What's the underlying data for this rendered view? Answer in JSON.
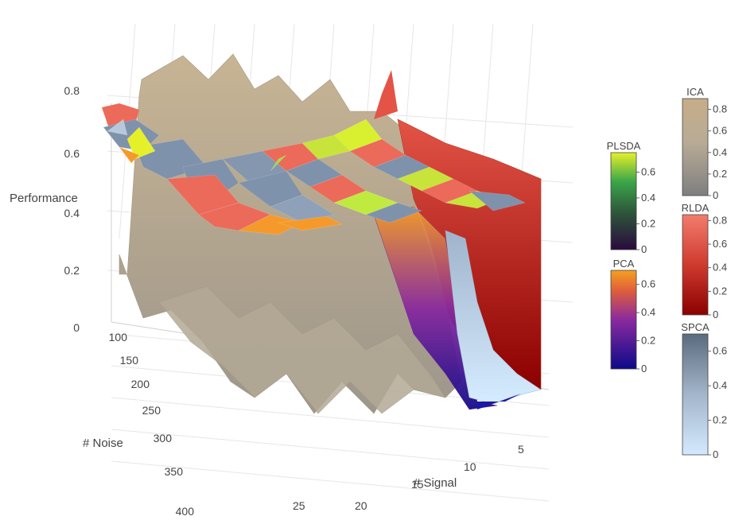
{
  "chart_data": {
    "type": "surface3d",
    "zaxis": {
      "title": "Performance",
      "ticks": [
        "0",
        "0.2",
        "0.4",
        "0.6",
        "0.8"
      ],
      "range": [
        0,
        0.9
      ]
    },
    "noise_axis": {
      "title": "# Noise",
      "ticks": [
        "100",
        "150",
        "200",
        "250",
        "300",
        "350",
        "400"
      ],
      "range": [
        100,
        400
      ]
    },
    "signal_axis": {
      "title": "# Signal",
      "ticks": [
        "5",
        "10",
        "15",
        "20",
        "25"
      ],
      "range": [
        3,
        28
      ]
    },
    "grid": true,
    "series": [
      {
        "name": "ICA",
        "colorscale": [
          "#7f7f7f",
          "#bfb29a",
          "#c9b08d"
        ],
        "colorbar": {
          "ticks": [
            "0",
            "0.2",
            "0.4",
            "0.6",
            "0.8"
          ],
          "max": 0.9
        },
        "approx_level": 0.55
      },
      {
        "name": "RLDA",
        "colorscale": [
          "#8b0000",
          "#e8534a",
          "#f27d6e"
        ],
        "colorbar": {
          "ticks": [
            "0",
            "0.2",
            "0.4",
            "0.6",
            "0.8"
          ],
          "max": 0.85
        },
        "approx_level": 0.68
      },
      {
        "name": "PLSDA",
        "colorscale": [
          "#2a0a3d",
          "#3aa64a",
          "#e6f02a"
        ],
        "colorbar": {
          "ticks": [
            "0",
            "0.2",
            "0.4",
            "0.6"
          ],
          "max": 0.75
        },
        "approx_level": 0.6
      },
      {
        "name": "PCA",
        "colorscale": [
          "#0d0a8a",
          "#8a2a9e",
          "#f5a020"
        ],
        "colorbar": {
          "ticks": [
            "0",
            "0.2",
            "0.4",
            "0.6"
          ],
          "max": 0.7
        },
        "approx_level": 0.6
      },
      {
        "name": "SPCA",
        "colorscale": [
          "#cfe6ff",
          "#9fb2c8",
          "#5b6b7e"
        ],
        "colorbar": {
          "ticks": [
            "0",
            "0.2",
            "0.4",
            "0.6"
          ],
          "max": 0.7
        },
        "approx_level": 0.62
      }
    ]
  }
}
